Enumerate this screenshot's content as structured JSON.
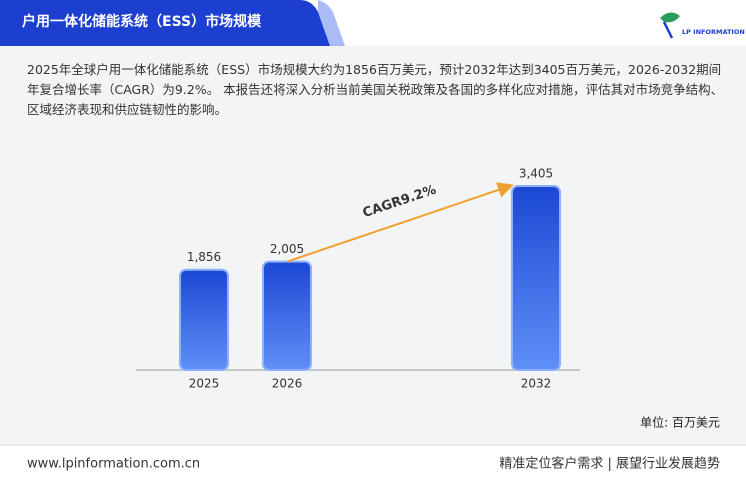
{
  "header": {
    "title": "户用一体化储能系统（ESS）市场规模",
    "logo": "LP INFORMATION"
  },
  "summary": "2025年全球户用一体化储能系统（ESS）市场规模大约为1856百万美元，预计2032年达到3405百万美元，2026-2032期间年复合增长率（CAGR）为9.2%。 本报告还将深入分析当前美国关税政策及各国的多样化应对措施，评估其对市场竞争结构、区域经济表现和供应链韧性的影响。",
  "chart_data": {
    "type": "bar",
    "categories": [
      "2025",
      "2026",
      "2032"
    ],
    "values": [
      1856,
      2005,
      3405
    ],
    "value_labels": [
      "1,856",
      "2,005",
      "3,405"
    ],
    "color": "#1c48d4",
    "annotation": "CAGR9.2%",
    "unit_label": "单位: 百万美元"
  },
  "footer": {
    "website": "www.lpinformation.com.cn",
    "slogan": "精准定位客户需求 | 展望行业发展趋势"
  }
}
